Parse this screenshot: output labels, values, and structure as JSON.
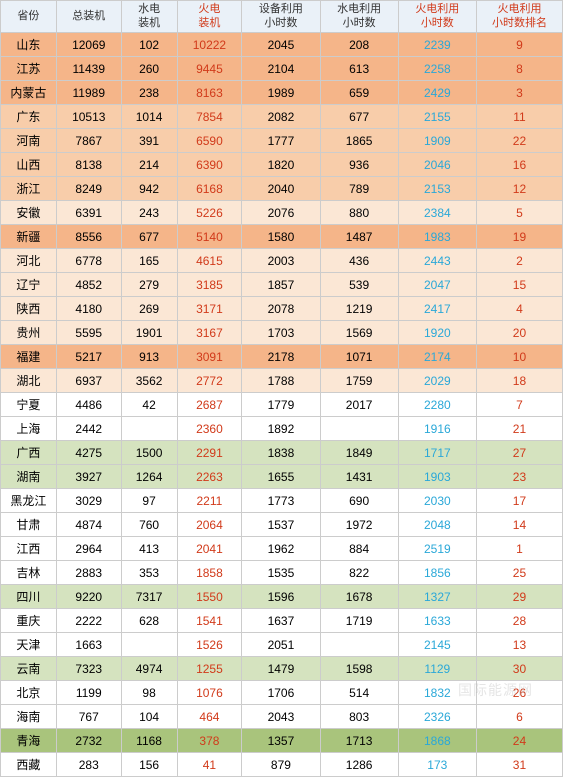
{
  "headers": [
    {
      "label": "省份",
      "cls": ""
    },
    {
      "label": "总装机",
      "cls": ""
    },
    {
      "label": "水电\n装机",
      "cls": ""
    },
    {
      "label": "火电\n装机",
      "cls": "hdr-red"
    },
    {
      "label": "设备利用\n小时数",
      "cls": ""
    },
    {
      "label": "水电利用\n小时数",
      "cls": ""
    },
    {
      "label": "火电利用\n小时数",
      "cls": "hdr-red"
    },
    {
      "label": "火电利用\n小时数排名",
      "cls": "hdr-red"
    }
  ],
  "rows": [
    {
      "bg": "bg-orange-dark",
      "cells": [
        "山东",
        "12069",
        "102",
        "10222",
        "2045",
        "208",
        "2239",
        "9"
      ]
    },
    {
      "bg": "bg-orange-dark",
      "cells": [
        "江苏",
        "11439",
        "260",
        "9445",
        "2104",
        "613",
        "2258",
        "8"
      ]
    },
    {
      "bg": "bg-orange-dark",
      "cells": [
        "内蒙古",
        "11989",
        "238",
        "8163",
        "1989",
        "659",
        "2429",
        "3"
      ]
    },
    {
      "bg": "bg-orange-mid",
      "cells": [
        "广东",
        "10513",
        "1014",
        "7854",
        "2082",
        "677",
        "2155",
        "11"
      ]
    },
    {
      "bg": "bg-orange-mid",
      "cells": [
        "河南",
        "7867",
        "391",
        "6590",
        "1777",
        "1865",
        "1909",
        "22"
      ]
    },
    {
      "bg": "bg-orange-mid",
      "cells": [
        "山西",
        "8138",
        "214",
        "6390",
        "1820",
        "936",
        "2046",
        "16"
      ]
    },
    {
      "bg": "bg-orange-mid",
      "cells": [
        "浙江",
        "8249",
        "942",
        "6168",
        "2040",
        "789",
        "2153",
        "12"
      ]
    },
    {
      "bg": "bg-orange-lite",
      "cells": [
        "安徽",
        "6391",
        "243",
        "5226",
        "2076",
        "880",
        "2384",
        "5"
      ]
    },
    {
      "bg": "bg-orange-dark",
      "cells": [
        "新疆",
        "8556",
        "677",
        "5140",
        "1580",
        "1487",
        "1983",
        "19"
      ]
    },
    {
      "bg": "bg-orange-lite",
      "cells": [
        "河北",
        "6778",
        "165",
        "4615",
        "2003",
        "436",
        "2443",
        "2"
      ]
    },
    {
      "bg": "bg-orange-lite",
      "cells": [
        "辽宁",
        "4852",
        "279",
        "3185",
        "1857",
        "539",
        "2047",
        "15"
      ]
    },
    {
      "bg": "bg-orange-lite",
      "cells": [
        "陕西",
        "4180",
        "269",
        "3171",
        "2078",
        "1219",
        "2417",
        "4"
      ]
    },
    {
      "bg": "bg-orange-lite",
      "cells": [
        "贵州",
        "5595",
        "1901",
        "3167",
        "1703",
        "1569",
        "1920",
        "20"
      ]
    },
    {
      "bg": "bg-orange-dark",
      "cells": [
        "福建",
        "5217",
        "913",
        "3091",
        "2178",
        "1071",
        "2174",
        "10"
      ]
    },
    {
      "bg": "bg-orange-lite",
      "cells": [
        "湖北",
        "6937",
        "3562",
        "2772",
        "1788",
        "1759",
        "2029",
        "18"
      ]
    },
    {
      "bg": "bg-plain",
      "cells": [
        "宁夏",
        "4486",
        "42",
        "2687",
        "1779",
        "2017",
        "2280",
        "7"
      ]
    },
    {
      "bg": "bg-plain",
      "cells": [
        "上海",
        "2442",
        "",
        "2360",
        "1892",
        "",
        "1916",
        "21"
      ]
    },
    {
      "bg": "bg-green-lite",
      "cells": [
        "广西",
        "4275",
        "1500",
        "2291",
        "1838",
        "1849",
        "1717",
        "27"
      ]
    },
    {
      "bg": "bg-green-lite",
      "cells": [
        "湖南",
        "3927",
        "1264",
        "2263",
        "1655",
        "1431",
        "1903",
        "23"
      ]
    },
    {
      "bg": "bg-plain",
      "cells": [
        "黑龙江",
        "3029",
        "97",
        "2211",
        "1773",
        "690",
        "2030",
        "17"
      ]
    },
    {
      "bg": "bg-plain",
      "cells": [
        "甘肃",
        "4874",
        "760",
        "2064",
        "1537",
        "1972",
        "2048",
        "14"
      ]
    },
    {
      "bg": "bg-plain",
      "cells": [
        "江西",
        "2964",
        "413",
        "2041",
        "1962",
        "884",
        "2519",
        "1"
      ]
    },
    {
      "bg": "bg-plain",
      "cells": [
        "吉林",
        "2883",
        "353",
        "1858",
        "1535",
        "822",
        "1856",
        "25"
      ]
    },
    {
      "bg": "bg-green-lite",
      "cells": [
        "四川",
        "9220",
        "7317",
        "1550",
        "1596",
        "1678",
        "1327",
        "29"
      ]
    },
    {
      "bg": "bg-plain",
      "cells": [
        "重庆",
        "2222",
        "628",
        "1541",
        "1637",
        "1719",
        "1633",
        "28"
      ]
    },
    {
      "bg": "bg-plain",
      "cells": [
        "天津",
        "1663",
        "",
        "1526",
        "2051",
        "",
        "2145",
        "13"
      ]
    },
    {
      "bg": "bg-green-lite",
      "cells": [
        "云南",
        "7323",
        "4974",
        "1255",
        "1479",
        "1598",
        "1129",
        "30"
      ]
    },
    {
      "bg": "bg-plain",
      "cells": [
        "北京",
        "1199",
        "98",
        "1076",
        "1706",
        "514",
        "1832",
        "26"
      ]
    },
    {
      "bg": "bg-plain",
      "cells": [
        "海南",
        "767",
        "104",
        "464",
        "2043",
        "803",
        "2326",
        "6"
      ]
    },
    {
      "bg": "bg-green-dark",
      "cells": [
        "青海",
        "2732",
        "1168",
        "378",
        "1357",
        "1713",
        "1868",
        "24"
      ]
    },
    {
      "bg": "bg-plain",
      "cells": [
        "西藏",
        "283",
        "156",
        "41",
        "879",
        "1286",
        "173",
        "31"
      ]
    }
  ],
  "col_red_indices": [
    3,
    7
  ],
  "col_cyan_indices": [
    6
  ],
  "watermark": "国际能源网"
}
